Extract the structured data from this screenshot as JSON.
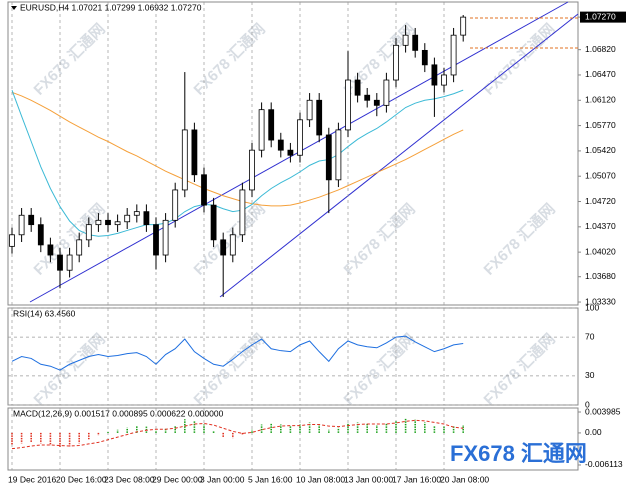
{
  "chart_data": [
    {
      "type": "candlestick",
      "title": "EURUSD,H4 1.07021 1.07299 1.06932 1.07270",
      "categories": [
        "19 Dec 2016",
        null,
        null,
        null,
        null,
        "20 Dec 16:00",
        null,
        null,
        null,
        null,
        "23 Dec 08:00",
        null,
        null,
        null,
        null,
        "29 Dec 00:00",
        null,
        null,
        null,
        null,
        "3 Jan 00:00",
        null,
        null,
        null,
        null,
        "5 Jan 16:00",
        null,
        null,
        null,
        null,
        "10 Jan 08:00",
        null,
        null,
        null,
        null,
        "13 Jan 00:00",
        null,
        null,
        null,
        null,
        "17 Jan 16:00",
        null,
        null,
        null,
        null,
        "20 Jan 08:00",
        null,
        null
      ],
      "open": [
        1.041,
        1.0426,
        1.0453,
        1.044,
        1.0412,
        1.0398,
        1.0377,
        1.0398,
        1.0419,
        1.044,
        1.0446,
        1.044,
        1.0444,
        1.0453,
        1.0458,
        1.044,
        1.0398,
        1.0446,
        1.0488,
        1.0571,
        1.0509,
        1.0467,
        1.0419,
        1.0398,
        1.0426,
        1.0488,
        1.0543,
        1.0599,
        1.0557,
        1.0543,
        1.0536,
        1.0585,
        1.0612,
        1.0564,
        1.0502,
        1.0571,
        1.064,
        1.0619,
        1.0612,
        1.0605,
        1.064,
        1.0688,
        1.0702,
        1.0681,
        1.0661,
        1.0633,
        1.0647,
        1.07021
      ],
      "high": [
        1.0436,
        1.0463,
        1.0463,
        1.045,
        1.0422,
        1.0408,
        1.0408,
        1.0429,
        1.045,
        1.0456,
        1.0456,
        1.0454,
        1.0463,
        1.0468,
        1.0468,
        1.045,
        1.0456,
        1.0498,
        1.0651,
        1.0581,
        1.0519,
        1.0477,
        1.0429,
        1.0436,
        1.0498,
        1.0553,
        1.0609,
        1.0609,
        1.0567,
        1.0553,
        1.0595,
        1.0622,
        1.0622,
        1.0574,
        1.0581,
        1.068,
        1.065,
        1.0629,
        1.0622,
        1.065,
        1.0698,
        1.0716,
        1.0712,
        1.0691,
        1.0671,
        1.0657,
        1.0712,
        1.07299
      ],
      "low": [
        1.04,
        1.0416,
        1.043,
        1.0402,
        1.0388,
        1.0352,
        1.0367,
        1.0388,
        1.0409,
        1.043,
        1.043,
        1.043,
        1.0434,
        1.0443,
        1.043,
        1.0378,
        1.0388,
        1.0436,
        1.0478,
        1.0499,
        1.0457,
        1.0409,
        1.034,
        1.0388,
        1.0416,
        1.0478,
        1.0533,
        1.0547,
        1.0533,
        1.0526,
        1.0526,
        1.0575,
        1.0554,
        1.0456,
        1.0492,
        1.0561,
        1.0609,
        1.0602,
        1.059,
        1.0595,
        1.063,
        1.0678,
        1.0671,
        1.0651,
        1.0589,
        1.0623,
        1.0637,
        1.06932
      ],
      "close": [
        1.0426,
        1.0453,
        1.044,
        1.0412,
        1.0398,
        1.0377,
        1.0398,
        1.0419,
        1.044,
        1.0446,
        1.044,
        1.0444,
        1.0453,
        1.0458,
        1.044,
        1.0398,
        1.0446,
        1.0488,
        1.0571,
        1.0509,
        1.0467,
        1.0419,
        1.0398,
        1.0426,
        1.0488,
        1.0543,
        1.0599,
        1.0557,
        1.0543,
        1.0536,
        1.0585,
        1.0612,
        1.0564,
        1.0502,
        1.0571,
        1.064,
        1.0619,
        1.0612,
        1.0605,
        1.064,
        1.0688,
        1.0702,
        1.0681,
        1.0661,
        1.0633,
        1.0647,
        1.0702,
        1.0727
      ],
      "overlays": [
        {
          "color": "#f5a03a",
          "values": [
            1.0623,
            1.0618,
            1.0612,
            1.0605,
            1.0598,
            1.059,
            1.0582,
            1.0575,
            1.0568,
            1.0561,
            1.0555,
            1.0548,
            1.0541,
            1.0535,
            1.0528,
            1.0521,
            1.0514,
            1.0508,
            1.0502,
            1.0496,
            1.049,
            1.0485,
            1.048,
            1.0476,
            1.0472,
            1.0469,
            1.0467,
            1.0466,
            1.0466,
            1.0467,
            1.047,
            1.0474,
            1.0478,
            1.0483,
            1.0488,
            1.0494,
            1.05,
            1.0506,
            1.0512,
            1.0518,
            1.0524,
            1.053,
            1.0537,
            1.0544,
            1.0551,
            1.0558,
            1.0565,
            1.0571
          ]
        },
        {
          "color": "#3cbad6",
          "values": [
            1.0626,
            1.059,
            1.0555,
            1.052,
            1.049,
            1.0465,
            1.0445,
            1.0432,
            1.0426,
            1.0424,
            1.0425,
            1.0428,
            1.0432,
            1.0436,
            1.044,
            1.044,
            1.0442,
            1.0448,
            1.0458,
            1.0465,
            1.0468,
            1.0467,
            1.0462,
            1.0458,
            1.046,
            1.0468,
            1.048,
            1.049,
            1.0498,
            1.0505,
            1.0513,
            1.0522,
            1.0528,
            1.053,
            1.0537,
            1.0548,
            1.0558,
            1.0566,
            1.0573,
            1.0582,
            1.0592,
            1.0602,
            1.0608,
            1.0612,
            1.0614,
            1.0617,
            1.0621,
            1.0626
          ]
        }
      ],
      "up_color": "#ffffff",
      "down_color": "#000000",
      "ylim": [
        1.03289,
        1.07479
      ],
      "yticks": [
        {
          "value": 1.0727,
          "label": "1.07270"
        },
        {
          "value": 1.0682,
          "label": "1.06820"
        },
        {
          "value": 1.0647,
          "label": "1.06470"
        },
        {
          "value": 1.0612,
          "label": "1.06120"
        },
        {
          "value": 1.0577,
          "label": "1.05770"
        },
        {
          "value": 1.0542,
          "label": "1.05420"
        },
        {
          "value": 1.0507,
          "label": "1.05070"
        },
        {
          "value": 1.0472,
          "label": "1.04720"
        },
        {
          "value": 1.0437,
          "label": "1.04370"
        },
        {
          "value": 1.0402,
          "label": "1.04020"
        },
        {
          "value": 1.0368,
          "label": "1.03680"
        },
        {
          "value": 1.0333,
          "label": "1.03330"
        }
      ]
    },
    {
      "type": "line",
      "title": "RSI(14) 63.4560",
      "color": "#1e6fe0",
      "values": [
        45,
        50,
        48,
        42,
        40,
        36,
        42,
        46,
        50,
        52,
        50,
        51,
        53,
        54,
        50,
        42,
        52,
        58,
        68,
        55,
        48,
        42,
        40,
        47,
        55,
        62,
        68,
        58,
        56,
        55,
        62,
        66,
        55,
        45,
        58,
        66,
        62,
        60,
        59,
        64,
        70,
        71,
        65,
        60,
        55,
        58,
        62,
        63.456
      ],
      "ylim": [
        0,
        100
      ],
      "yticks": [
        100,
        70,
        30,
        0
      ]
    },
    {
      "type": "macd",
      "title": "MACD(12,26,9) 0.001517 0.000895 0.000622 0.000000",
      "color_up": "#1aa01a",
      "color_down": "#e03020",
      "signal_color": "#e03020",
      "values": [
        -0.0022,
        -0.002,
        -0.0018,
        -0.002,
        -0.0024,
        -0.0028,
        -0.0026,
        -0.002,
        -0.0012,
        -0.0005,
        0.0002,
        0.0006,
        0.001,
        0.0013,
        0.0012,
        0.0005,
        0.0008,
        0.0014,
        0.0026,
        0.0024,
        0.0016,
        0.0004,
        -0.0008,
        -0.001,
        -0.0004,
        0.0006,
        0.0016,
        0.0018,
        0.0016,
        0.0013,
        0.0016,
        0.002,
        0.0016,
        0.0006,
        0.001,
        0.0018,
        0.002,
        0.0018,
        0.0015,
        0.0018,
        0.0024,
        0.0027,
        0.0025,
        0.002,
        0.0014,
        0.0012,
        0.0013,
        0.001517
      ],
      "signal": [
        -0.003,
        -0.0028,
        -0.0025,
        -0.0023,
        -0.0023,
        -0.0024,
        -0.0025,
        -0.0024,
        -0.0021,
        -0.0018,
        -0.0013,
        -0.0008,
        -0.0003,
        0.0002,
        0.0005,
        0.0007,
        0.0007,
        0.0009,
        0.0013,
        0.0017,
        0.0018,
        0.0015,
        0.0009,
        0.0003,
        -0.0001,
        0.0001,
        0.0006,
        0.001,
        0.0013,
        0.0014,
        0.0014,
        0.0016,
        0.0016,
        0.0013,
        0.0012,
        0.0014,
        0.0016,
        0.0017,
        0.0017,
        0.0017,
        0.0019,
        0.0022,
        0.0024,
        0.0023,
        0.002,
        0.0017,
        0.0011,
        0.000895
      ],
      "ylim": [
        -0.00707,
        0.00475
      ],
      "yticks": [
        0.003985,
        {
          "value": 0,
          "label": "0.00"
        },
        -0.006113
      ]
    }
  ],
  "watermark": "FX678 汇通网"
}
